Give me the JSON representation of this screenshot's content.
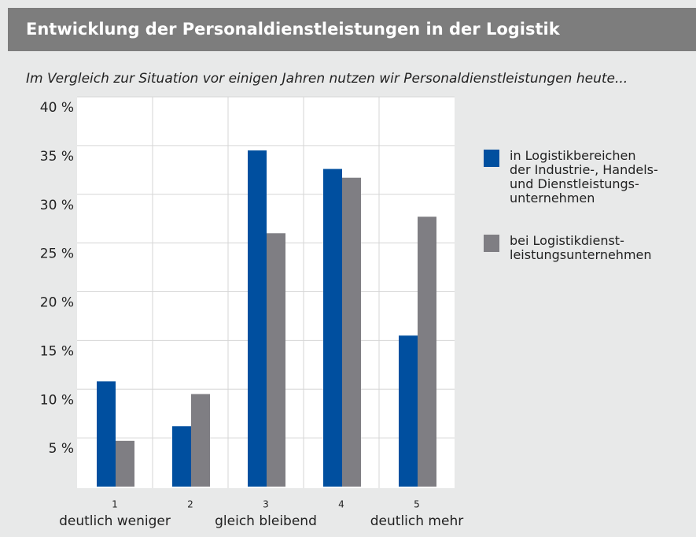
{
  "chart_data": {
    "type": "bar",
    "title": "Entwicklung der Personaldienstleistungen in der Logistik",
    "subtitle": "Im Vergleich zur Situation vor einigen Jahren nutzen wir Personaldienstleistungen heute...",
    "categories": [
      "1",
      "2",
      "3",
      "4",
      "5"
    ],
    "scale_labels": [
      "deutlich weniger",
      "gleich bleibend",
      "deutlich mehr"
    ],
    "series": [
      {
        "name": "in Logistikbereichen\nder Industrie-, Handels-\nund Dienstleistungs-\nunternehmen",
        "color": "#004f9f",
        "values": [
          10.8,
          6.2,
          34.5,
          32.6,
          15.5
        ]
      },
      {
        "name": "bei Logistikdienst-\nleistungsunternehmen",
        "color": "#7f7e83",
        "values": [
          4.7,
          9.5,
          26.0,
          31.7,
          27.7
        ]
      }
    ],
    "ylim": [
      0,
      40
    ],
    "yticks": [
      {
        "value": 5,
        "label": "5 %"
      },
      {
        "value": 10,
        "label": "10 %"
      },
      {
        "value": 15,
        "label": "15 %"
      },
      {
        "value": 20,
        "label": "20 %"
      },
      {
        "value": 25,
        "label": "25 %"
      },
      {
        "value": 30,
        "label": "30 %"
      },
      {
        "value": 35,
        "label": "35 %"
      },
      {
        "value": 40,
        "label": "40 %"
      }
    ],
    "grid": true,
    "legend": "right"
  }
}
